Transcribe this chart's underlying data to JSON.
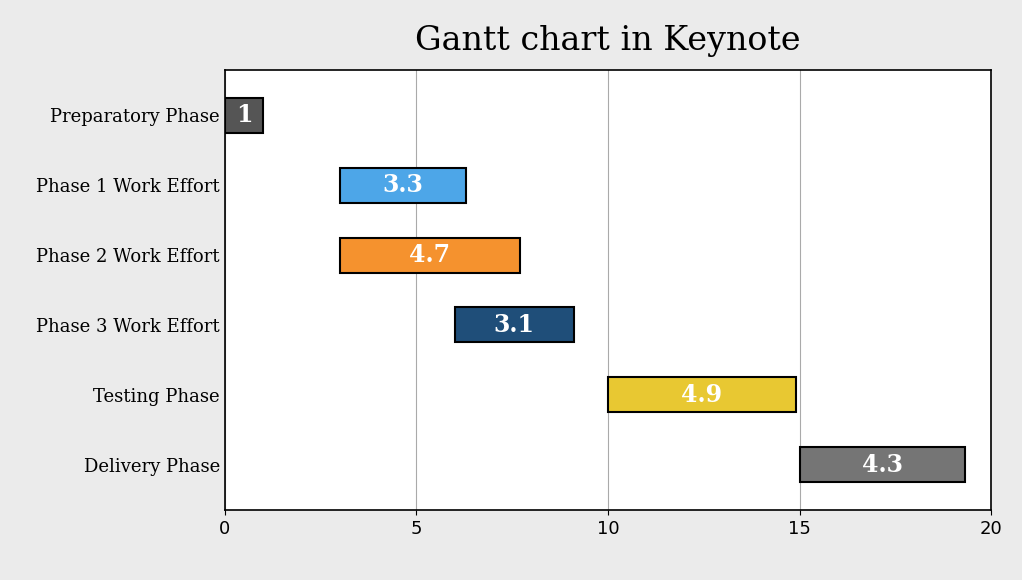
{
  "title": "Gantt chart in Keynote",
  "title_fontsize": 24,
  "title_font": "serif",
  "tasks": [
    "Preparatory Phase",
    "Phase 1 Work Effort",
    "Phase 2 Work Effort",
    "Phase 3 Work Effort",
    "Testing Phase",
    "Delivery Phase"
  ],
  "starts": [
    0,
    3,
    3,
    6,
    10,
    15
  ],
  "durations": [
    1,
    3.3,
    4.7,
    3.1,
    4.9,
    4.3
  ],
  "colors": [
    "#555555",
    "#4da6e8",
    "#f5922e",
    "#1f4e79",
    "#e8c832",
    "#757575"
  ],
  "label_colors": [
    "#ffffff",
    "#ffffff",
    "#ffffff",
    "#ffffff",
    "#ffffff",
    "#ffffff"
  ],
  "xlim": [
    0,
    20
  ],
  "xticks": [
    0,
    5,
    10,
    15,
    20
  ],
  "bar_height": 0.5,
  "grid_color": "#aaaaaa",
  "outer_bg": "#ebebeb",
  "plot_bg_color": "#ffffff",
  "border_color": "#000000",
  "label_fontsize": 17,
  "ytick_fontsize": 13,
  "xtick_fontsize": 13
}
